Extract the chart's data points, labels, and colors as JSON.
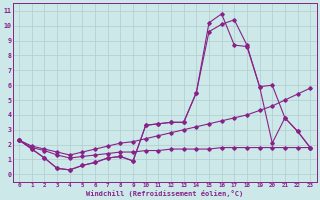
{
  "xlabel": "Windchill (Refroidissement éolien,°C)",
  "bg_color": "#cce8e8",
  "grid_color": "#b0cccc",
  "line_color": "#882288",
  "xlim": [
    -0.5,
    23.5
  ],
  "ylim": [
    -0.5,
    11.5
  ],
  "xticks": [
    0,
    1,
    2,
    3,
    4,
    5,
    6,
    7,
    8,
    9,
    10,
    11,
    12,
    13,
    14,
    15,
    16,
    17,
    18,
    19,
    20,
    21,
    22,
    23
  ],
  "yticks": [
    0,
    1,
    2,
    3,
    4,
    5,
    6,
    7,
    8,
    9,
    10,
    11
  ],
  "series1_x": [
    0,
    1,
    2,
    3,
    4,
    5,
    6,
    7,
    8,
    9,
    10,
    11,
    12,
    13,
    14,
    15,
    16,
    17,
    18,
    19,
    20,
    21,
    22,
    23
  ],
  "series1_y": [
    2.3,
    1.7,
    1.1,
    0.4,
    0.3,
    0.6,
    0.8,
    1.1,
    1.2,
    0.9,
    3.3,
    3.4,
    3.5,
    3.5,
    5.5,
    9.6,
    10.1,
    10.4,
    8.7,
    5.9,
    6.0,
    3.8,
    2.9,
    1.8
  ],
  "series2_x": [
    0,
    1,
    2,
    3,
    4,
    5,
    6,
    7,
    8,
    9,
    10,
    11,
    12,
    13,
    14,
    15,
    16,
    17,
    18,
    19,
    20,
    21,
    22,
    23
  ],
  "series2_y": [
    2.3,
    1.7,
    1.1,
    0.4,
    0.3,
    0.6,
    0.8,
    1.1,
    1.2,
    0.9,
    3.3,
    3.4,
    3.5,
    3.5,
    5.5,
    10.2,
    10.8,
    8.7,
    8.6,
    5.9,
    2.1,
    3.8,
    2.9,
    1.8
  ],
  "series3_x": [
    0,
    1,
    2,
    3,
    4,
    5,
    6,
    7,
    8,
    9,
    10,
    11,
    12,
    13,
    14,
    15,
    16,
    17,
    18,
    19,
    20,
    21,
    22,
    23
  ],
  "series3_y": [
    2.3,
    1.9,
    1.7,
    1.5,
    1.3,
    1.5,
    1.7,
    1.9,
    2.1,
    2.2,
    2.4,
    2.6,
    2.8,
    3.0,
    3.2,
    3.4,
    3.6,
    3.8,
    4.0,
    4.3,
    4.6,
    5.0,
    5.4,
    5.8
  ],
  "series4_x": [
    0,
    1,
    2,
    3,
    4,
    5,
    6,
    7,
    8,
    9,
    10,
    11,
    12,
    13,
    14,
    15,
    16,
    17,
    18,
    19,
    20,
    21,
    22,
    23
  ],
  "series4_y": [
    2.3,
    1.8,
    1.6,
    1.3,
    1.1,
    1.2,
    1.3,
    1.4,
    1.5,
    1.5,
    1.6,
    1.6,
    1.7,
    1.7,
    1.7,
    1.7,
    1.8,
    1.8,
    1.8,
    1.8,
    1.8,
    1.8,
    1.8,
    1.8
  ]
}
